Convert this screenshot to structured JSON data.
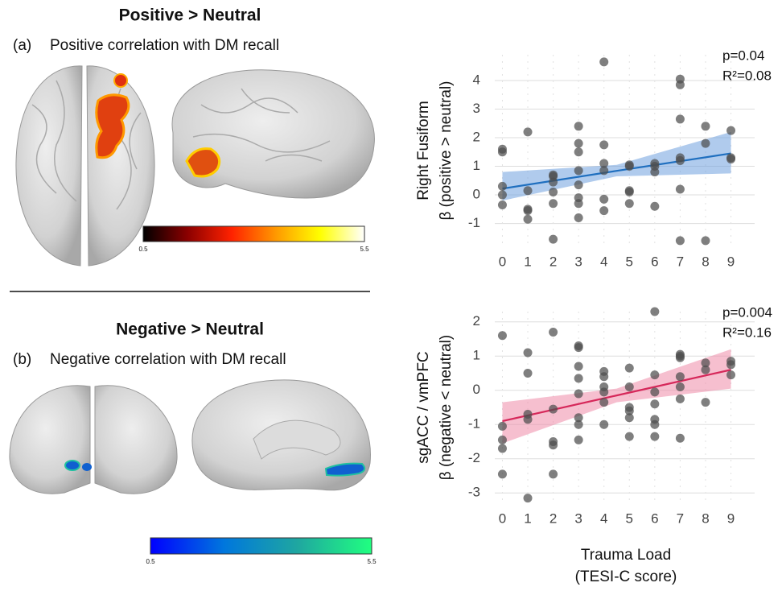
{
  "panels": [
    {
      "title": "Positive > Neutral",
      "label": "(a)",
      "caption": "Positive correlation with DM recall",
      "colorbar": {
        "ticks": [
          0.5,
          5.5
        ],
        "colors": [
          "#000000",
          "#8b0000",
          "#ff2200",
          "#ff9900",
          "#ffff00",
          "#ffffff"
        ]
      }
    },
    {
      "title": "Negative > Neutral",
      "label": "(b)",
      "caption": "Negative correlation with DM recall",
      "colorbar": {
        "ticks": [
          0.5,
          5.5
        ],
        "colors": [
          "#0000ff",
          "#0077dd",
          "#1fa7a0",
          "#20ff80"
        ]
      }
    }
  ],
  "chart_data": [
    {
      "type": "scatter",
      "ylabel": [
        "Right Fusiform",
        "β (positive > neutral)"
      ],
      "annotations": [
        "p=0.04",
        "R²=0.08"
      ],
      "x": [
        0,
        0,
        0,
        0,
        0,
        1,
        1,
        1,
        1,
        1,
        2,
        2,
        2,
        2,
        2,
        2,
        3,
        3,
        3,
        3,
        3,
        3,
        3,
        3,
        4,
        4,
        4,
        4,
        4,
        4,
        5,
        5,
        5,
        5,
        5,
        6,
        6,
        6,
        6,
        7,
        7,
        7,
        7,
        7,
        7,
        7,
        8,
        8,
        8,
        9,
        9,
        9
      ],
      "values": [
        1.6,
        1.5,
        0.3,
        0,
        -0.35,
        2.2,
        0.15,
        -0.5,
        -0.55,
        -0.85,
        0.7,
        0.65,
        0.45,
        0.1,
        -0.3,
        -1.55,
        2.4,
        1.8,
        1.5,
        0.85,
        0.35,
        -0.1,
        -0.3,
        -0.8,
        4.65,
        1.75,
        1.1,
        0.85,
        -0.15,
        -0.55,
        1.05,
        1.0,
        0.15,
        0.1,
        -0.3,
        1.1,
        1.0,
        0.8,
        -0.4,
        4.05,
        3.85,
        2.65,
        1.3,
        1.2,
        0.2,
        -1.6,
        2.4,
        1.8,
        -1.6,
        2.25,
        1.3,
        1.25
      ],
      "color": "#4d4d4d",
      "fit": {
        "x": [
          0,
          4.5,
          9
        ],
        "values": [
          0.22,
          0.84,
          1.45
        ],
        "lower": [
          -0.2,
          0.65,
          0.75
        ],
        "upper": [
          0.8,
          1.05,
          2.2
        ],
        "color": "#1f6fbf",
        "band_color": "#6fa0de"
      },
      "xlim": [
        -0.3,
        9.3
      ],
      "ylim": [
        -1.8,
        4.9
      ],
      "xticks": [
        0,
        1,
        2,
        3,
        4,
        5,
        6,
        7,
        8,
        9
      ],
      "yticks": [
        -1,
        0,
        1,
        2,
        3,
        4
      ],
      "grid": true
    },
    {
      "type": "scatter",
      "ylabel": [
        "sgACC / vmPFC",
        "β (negative < neutral)"
      ],
      "annotations": [
        "p=0.004",
        "R²=0.16"
      ],
      "xlabel": [
        "Trauma Load",
        "(TESI-C score)"
      ],
      "x": [
        0,
        0,
        0,
        0,
        0,
        1,
        1,
        1,
        1,
        1,
        2,
        2,
        2,
        2,
        2,
        3,
        3,
        3,
        3,
        3,
        3,
        3,
        3,
        4,
        4,
        4,
        4,
        4,
        4,
        5,
        5,
        5,
        5,
        5,
        5,
        6,
        6,
        6,
        6,
        6,
        6,
        6,
        7,
        7,
        7,
        7,
        7,
        7,
        7,
        8,
        8,
        8,
        9,
        9,
        9
      ],
      "values": [
        1.6,
        -1.05,
        -1.45,
        -1.7,
        -2.45,
        1.1,
        0.5,
        -0.7,
        -0.85,
        -3.15,
        1.7,
        -0.55,
        -1.5,
        -1.6,
        -2.45,
        1.3,
        1.25,
        0.7,
        0.35,
        -0.1,
        -0.8,
        -1.0,
        -1.45,
        0.55,
        0.4,
        0.1,
        -0.05,
        -0.35,
        -1.0,
        0.65,
        0.1,
        -0.5,
        -0.6,
        -0.8,
        -1.35,
        2.3,
        0.45,
        -0.05,
        -0.4,
        -0.85,
        -1.0,
        -1.35,
        1.05,
        1.0,
        0.95,
        0.4,
        0.1,
        -0.25,
        -1.4,
        0.8,
        0.6,
        -0.35,
        0.85,
        0.75,
        0.45
      ],
      "color": "#4d4d4d",
      "fit": {
        "x": [
          0,
          4.5,
          9
        ],
        "values": [
          -0.9,
          -0.15,
          0.6
        ],
        "lower": [
          -1.55,
          -0.35,
          0.05
        ],
        "upper": [
          -0.35,
          0.05,
          1.2
        ],
        "color": "#d6285a",
        "band_color": "#ee8aa8"
      },
      "xlim": [
        -0.3,
        9.3
      ],
      "ylim": [
        -3.3,
        2.3
      ],
      "xticks": [
        0,
        1,
        2,
        3,
        4,
        5,
        6,
        7,
        8,
        9
      ],
      "yticks": [
        -3,
        -2,
        -1,
        0,
        1,
        2
      ],
      "grid": true
    }
  ]
}
